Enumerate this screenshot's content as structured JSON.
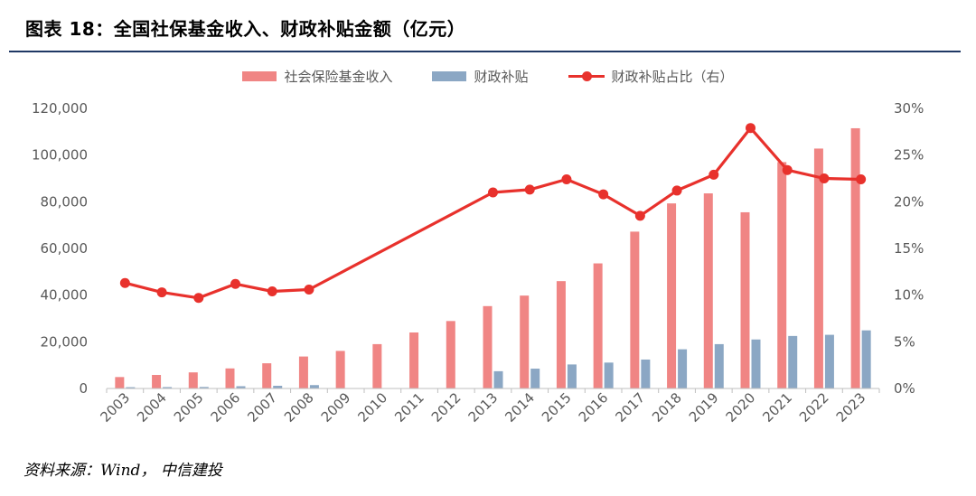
{
  "figure": {
    "title": "图表 18：全国社保基金收入、财政补贴金额（亿元）",
    "source": "资料来源：Wind， 中信建投"
  },
  "colors": {
    "income_bar": "#f08584",
    "subsidy_bar": "#8ba7c4",
    "ratio_line": "#e8312c",
    "title_rule": "#1f3864"
  },
  "chart_data": {
    "type": "bar",
    "title": "全国社保基金收入、财政补贴金额（亿元）",
    "categories": [
      "2003",
      "2004",
      "2005",
      "2006",
      "2007",
      "2008",
      "2009",
      "2010",
      "2011",
      "2012",
      "2013",
      "2014",
      "2015",
      "2016",
      "2017",
      "2018",
      "2019",
      "2020",
      "2021",
      "2022",
      "2023"
    ],
    "series": [
      {
        "name": "社会保险基金收入",
        "kind": "bar",
        "axis": "left",
        "values": [
          4900,
          5800,
          6900,
          8600,
          10800,
          13700,
          16100,
          19000,
          24000,
          28900,
          35300,
          39800,
          46000,
          53600,
          67200,
          79300,
          83600,
          75500,
          97000,
          102800,
          111500
        ]
      },
      {
        "name": "财政补贴",
        "kind": "bar",
        "axis": "left",
        "values": [
          550,
          600,
          650,
          970,
          1150,
          1450,
          0,
          0,
          0,
          0,
          7400,
          8500,
          10300,
          11100,
          12400,
          16800,
          19000,
          21000,
          22500,
          23000,
          24900
        ]
      },
      {
        "name": "财政补贴占比（右）",
        "kind": "line",
        "axis": "right",
        "values": [
          11.3,
          10.3,
          9.7,
          11.2,
          10.4,
          10.6,
          null,
          null,
          null,
          null,
          21.0,
          21.3,
          22.4,
          20.8,
          18.5,
          21.2,
          22.9,
          27.9,
          23.4,
          22.5,
          22.4
        ]
      }
    ],
    "y_left": {
      "min": 0,
      "max": 120000,
      "step": 20000,
      "tick_labels": [
        "0",
        "20,000",
        "40,000",
        "60,000",
        "80,000",
        "100,000",
        "120,000"
      ]
    },
    "y_right": {
      "min": 0,
      "max": 30,
      "step": 5,
      "tick_labels": [
        "0%",
        "5%",
        "10%",
        "15%",
        "20%",
        "25%",
        "30%"
      ]
    },
    "legend_position": "top-center",
    "grid": false
  }
}
